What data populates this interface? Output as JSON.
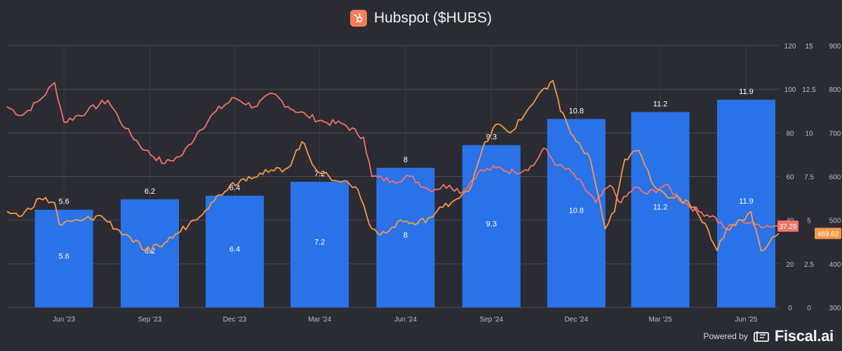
{
  "header": {
    "title": "Hubspot ($HUBS)",
    "logo_icon": "hubspot-sprocket-icon",
    "logo_color": "#ff7a59"
  },
  "footer": {
    "powered_label": "Powered by",
    "brand": "Fiscal.ai",
    "brand_icon": "fiscal-ai-logo-icon"
  },
  "chart_data": {
    "type": "bar",
    "x_range": [
      "2023-04-15",
      "2025-07-20"
    ],
    "x_ticks": [
      {
        "date": "2023-06-15",
        "label": "Jun '23"
      },
      {
        "date": "2023-09-15",
        "label": "Sep '23"
      },
      {
        "date": "2023-12-15",
        "label": "Dec '23"
      },
      {
        "date": "2024-03-15",
        "label": "Mar '24"
      },
      {
        "date": "2024-06-15",
        "label": "Jun '24"
      },
      {
        "date": "2024-09-15",
        "label": "Sep '24"
      },
      {
        "date": "2024-12-15",
        "label": "Dec '24"
      },
      {
        "date": "2025-03-15",
        "label": "Mar '25"
      },
      {
        "date": "2025-06-15",
        "label": "Jun '25"
      }
    ],
    "axes": [
      {
        "id": "a1",
        "min": 0,
        "max": 120,
        "ticks": [
          "0",
          "20",
          "40",
          "60",
          "80",
          "100",
          "120"
        ]
      },
      {
        "id": "a2",
        "min": 0,
        "max": 15,
        "ticks": [
          "0",
          "2.5",
          "5",
          "7.5",
          "10",
          "12.5",
          "15"
        ]
      },
      {
        "id": "a3",
        "min": 300,
        "max": 900,
        "ticks": [
          "300",
          "400",
          "500",
          "600",
          "700",
          "800",
          "900"
        ]
      }
    ],
    "bars": {
      "color": "#2a72e8",
      "axis": "a2",
      "values": [
        5.6,
        6.2,
        6.4,
        7.2,
        8,
        9.3,
        10.8,
        11.2,
        11.9
      ],
      "labels": [
        "5.6",
        "6.2",
        "6.4",
        "7.2",
        "8",
        "9.3",
        "10.8",
        "11.2",
        "11.9"
      ]
    },
    "series": [
      {
        "color": "#f0746a",
        "axis": "a1",
        "end_label": "37.29",
        "anchors": [
          [
            "2023-04-15",
            92
          ],
          [
            "2023-05-01",
            88
          ],
          [
            "2023-05-20",
            95
          ],
          [
            "2023-06-05",
            103
          ],
          [
            "2023-06-15",
            85
          ],
          [
            "2023-07-10",
            90
          ],
          [
            "2023-08-01",
            95
          ],
          [
            "2023-08-20",
            82
          ],
          [
            "2023-09-10",
            72
          ],
          [
            "2023-10-01",
            66
          ],
          [
            "2023-10-20",
            70
          ],
          [
            "2023-11-05",
            80
          ],
          [
            "2023-11-25",
            90
          ],
          [
            "2023-12-15",
            96
          ],
          [
            "2024-01-05",
            92
          ],
          [
            "2024-01-25",
            98
          ],
          [
            "2024-02-10",
            92
          ],
          [
            "2024-03-01",
            88
          ],
          [
            "2024-03-20",
            85
          ],
          [
            "2024-04-10",
            84
          ],
          [
            "2024-05-01",
            78
          ],
          [
            "2024-05-10",
            60
          ],
          [
            "2024-06-01",
            58
          ],
          [
            "2024-06-20",
            60
          ],
          [
            "2024-07-10",
            54
          ],
          [
            "2024-08-01",
            56
          ],
          [
            "2024-08-15",
            53
          ],
          [
            "2024-09-01",
            62
          ],
          [
            "2024-09-20",
            64
          ],
          [
            "2024-10-10",
            62
          ],
          [
            "2024-10-30",
            65
          ],
          [
            "2024-11-10",
            73
          ],
          [
            "2024-11-25",
            65
          ],
          [
            "2024-12-10",
            62
          ],
          [
            "2025-01-05",
            48
          ],
          [
            "2025-01-20",
            56
          ],
          [
            "2025-02-01",
            48
          ],
          [
            "2025-02-15",
            55
          ],
          [
            "2025-03-01",
            52
          ],
          [
            "2025-03-20",
            56
          ],
          [
            "2025-04-10",
            48
          ],
          [
            "2025-04-25",
            44
          ],
          [
            "2025-05-10",
            42
          ],
          [
            "2025-05-25",
            36
          ],
          [
            "2025-06-10",
            40
          ],
          [
            "2025-06-25",
            38
          ],
          [
            "2025-07-20",
            37.29
          ]
        ]
      },
      {
        "color": "#f59a4a",
        "axis": "a3",
        "end_label": "469.62",
        "anchors": [
          [
            "2023-04-15",
            520
          ],
          [
            "2023-05-01",
            510
          ],
          [
            "2023-05-20",
            550
          ],
          [
            "2023-06-05",
            540
          ],
          [
            "2023-06-10",
            490
          ],
          [
            "2023-07-05",
            500
          ],
          [
            "2023-07-25",
            510
          ],
          [
            "2023-08-10",
            480
          ],
          [
            "2023-08-25",
            460
          ],
          [
            "2023-09-10",
            430
          ],
          [
            "2023-09-25",
            440
          ],
          [
            "2023-10-15",
            470
          ],
          [
            "2023-11-01",
            500
          ],
          [
            "2023-11-20",
            540
          ],
          [
            "2023-12-10",
            580
          ],
          [
            "2023-12-30",
            600
          ],
          [
            "2024-01-20",
            610
          ],
          [
            "2024-02-10",
            620
          ],
          [
            "2024-02-25",
            680
          ],
          [
            "2024-03-10",
            620
          ],
          [
            "2024-03-25",
            600
          ],
          [
            "2024-04-10",
            590
          ],
          [
            "2024-04-25",
            570
          ],
          [
            "2024-05-10",
            480
          ],
          [
            "2024-05-25",
            470
          ],
          [
            "2024-06-10",
            500
          ],
          [
            "2024-06-25",
            490
          ],
          [
            "2024-07-15",
            510
          ],
          [
            "2024-07-25",
            530
          ],
          [
            "2024-08-15",
            560
          ],
          [
            "2024-08-25",
            580
          ],
          [
            "2024-09-05",
            660
          ],
          [
            "2024-09-20",
            720
          ],
          [
            "2024-10-05",
            700
          ],
          [
            "2024-10-20",
            740
          ],
          [
            "2024-11-05",
            790
          ],
          [
            "2024-11-20",
            820
          ],
          [
            "2024-11-28",
            750
          ],
          [
            "2024-12-15",
            680
          ],
          [
            "2024-12-30",
            640
          ],
          [
            "2025-01-15",
            480
          ],
          [
            "2025-01-25",
            520
          ],
          [
            "2025-02-05",
            640
          ],
          [
            "2025-02-20",
            660
          ],
          [
            "2025-03-05",
            590
          ],
          [
            "2025-03-20",
            560
          ],
          [
            "2025-04-05",
            550
          ],
          [
            "2025-04-20",
            530
          ],
          [
            "2025-05-05",
            480
          ],
          [
            "2025-05-15",
            430
          ],
          [
            "2025-05-25",
            480
          ],
          [
            "2025-06-10",
            500
          ],
          [
            "2025-06-20",
            520
          ],
          [
            "2025-07-01",
            430
          ],
          [
            "2025-07-10",
            450
          ],
          [
            "2025-07-20",
            469.62
          ]
        ]
      }
    ],
    "grid": true,
    "legend": "none"
  }
}
